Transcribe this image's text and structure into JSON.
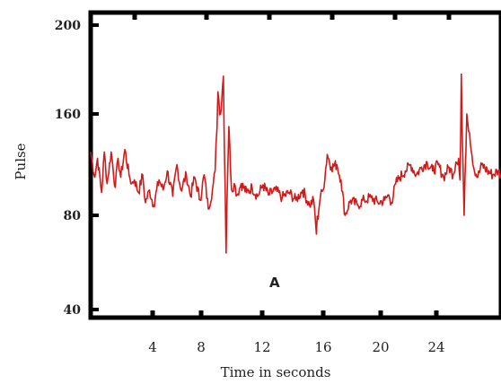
{
  "chart_data": {
    "type": "line",
    "title": "",
    "xlabel": "Time in seconds",
    "ylabel": "Pulse",
    "xlim": [
      0,
      30
    ],
    "ylim": [
      40,
      200
    ],
    "xticks": [
      4,
      8,
      12,
      16,
      20,
      24
    ],
    "yticks": [
      40,
      80,
      160,
      200
    ],
    "annotation": "A",
    "grid": false,
    "legend": "none",
    "line_color": "#d11a1a",
    "series": [
      {
        "x": [
          0,
          0.3,
          0.5,
          0.8,
          1.0,
          1.2,
          1.5,
          1.8,
          2.0,
          2.2,
          2.5,
          2.8,
          3.0,
          3.2,
          3.5,
          3.8,
          4.0,
          4.3,
          4.6,
          5.0,
          5.3,
          5.6,
          6.0,
          6.3,
          6.6,
          7.0,
          7.3,
          7.6,
          8.0,
          8.3,
          8.6,
          8.9,
          9.1,
          9.3,
          9.5,
          9.7,
          9.9,
          10.1,
          10.3,
          10.5,
          10.7,
          11.0,
          11.4,
          11.8,
          12.2,
          12.6,
          13.0,
          13.5,
          14.0,
          14.5,
          15.0,
          15.5,
          16.0,
          16.3,
          16.5,
          16.8,
          17.0,
          17.3,
          17.6,
          18.0,
          18.3,
          18.6,
          19.0,
          19.5,
          20.0,
          20.5,
          21.0,
          21.5,
          21.8,
          22.0,
          22.3,
          22.6,
          23.0,
          23.4,
          23.8,
          24.2,
          24.6,
          25.0,
          25.4,
          25.8,
          26.2,
          26.5,
          26.7,
          26.9,
          27.0,
          27.1,
          27.3,
          27.5,
          27.7,
          28.0,
          28.3,
          28.6,
          29.0,
          29.4,
          29.8,
          30.0
        ],
        "y": [
          130,
          110,
          125,
          98,
          130,
          105,
          130,
          102,
          125,
          110,
          132,
          112,
          105,
          108,
          98,
          112,
          90,
          100,
          88,
          108,
          100,
          115,
          95,
          120,
          100,
          112,
          95,
          110,
          92,
          112,
          85,
          100,
          115,
          170,
          160,
          177,
          64,
          150,
          100,
          105,
          96,
          105,
          98,
          102,
          95,
          104,
          96,
          100,
          94,
          98,
          92,
          100,
          88,
          92,
          72,
          95,
          100,
          128,
          118,
          120,
          108,
          80,
          92,
          88,
          92,
          94,
          90,
          92,
          96,
          90,
          105,
          110,
          115,
          120,
          112,
          118,
          122,
          115,
          120,
          110,
          118,
          112,
          122,
          125,
          108,
          178,
          80,
          160,
          145,
          118,
          110,
          120,
          115,
          112,
          115,
          112
        ]
      }
    ]
  }
}
